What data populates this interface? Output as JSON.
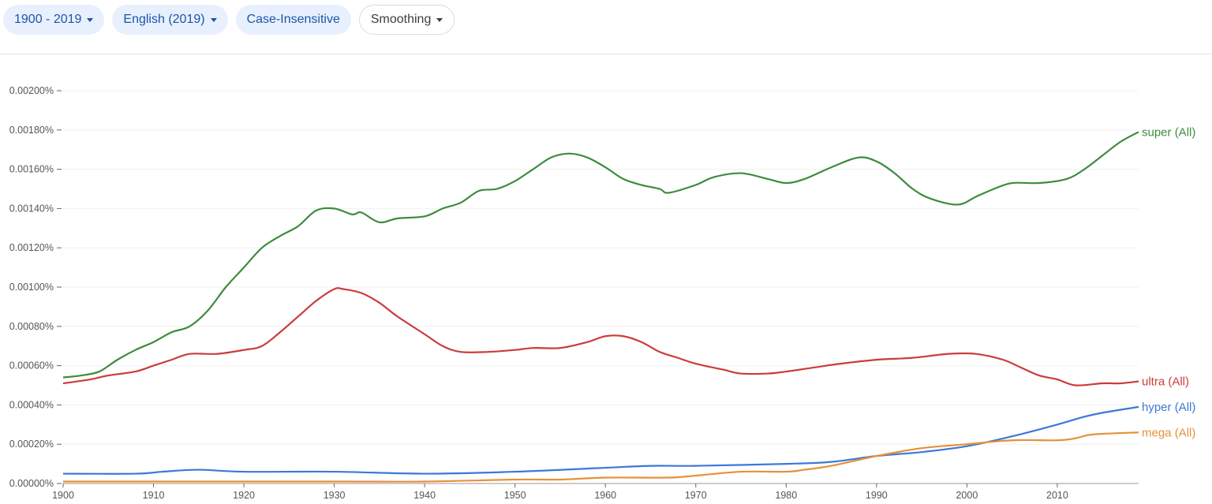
{
  "toolbar": {
    "chips": [
      {
        "label": "1900 - 2019",
        "dropdown": true
      },
      {
        "label": "English (2019)",
        "dropdown": true
      },
      {
        "label": "Case-Insensitive",
        "dropdown": false
      },
      {
        "label": "Smoothing",
        "dropdown": true
      }
    ]
  },
  "chart_data": {
    "type": "line",
    "xlabel": "",
    "ylabel": "",
    "xlim": [
      1900,
      2019
    ],
    "ylim": [
      0,
      0.002
    ],
    "x_ticks": [
      "1900",
      "1910",
      "1920",
      "1930",
      "1940",
      "1950",
      "1960",
      "1970",
      "1980",
      "1990",
      "2000",
      "2010"
    ],
    "y_ticks": [
      "0.00000%",
      "0.00020%",
      "0.00040%",
      "0.00060%",
      "0.00080%",
      "0.00100%",
      "0.00120%",
      "0.00140%",
      "0.00160%",
      "0.00180%",
      "0.00200%"
    ],
    "grid": true,
    "legend": "line-end labels",
    "series": [
      {
        "name": "super (All)",
        "color": "#3d8b3d",
        "x": [
          1900,
          1902,
          1904,
          1906,
          1908,
          1910,
          1912,
          1914,
          1916,
          1918,
          1920,
          1922,
          1924,
          1926,
          1928,
          1930,
          1932,
          1933,
          1935,
          1937,
          1940,
          1942,
          1944,
          1946,
          1948,
          1950,
          1952,
          1954,
          1956,
          1958,
          1960,
          1962,
          1964,
          1966,
          1967,
          1970,
          1972,
          1975,
          1978,
          1980,
          1982,
          1985,
          1988,
          1990,
          1992,
          1994,
          1996,
          1999,
          2001,
          2003,
          2005,
          2008,
          2011,
          2013,
          2015,
          2017,
          2019
        ],
        "values": [
          0.00054,
          0.00055,
          0.00057,
          0.00063,
          0.00068,
          0.00072,
          0.00077,
          0.0008,
          0.00088,
          0.001,
          0.0011,
          0.0012,
          0.00126,
          0.00131,
          0.00139,
          0.0014,
          0.00137,
          0.00138,
          0.00133,
          0.00135,
          0.00136,
          0.0014,
          0.00143,
          0.00149,
          0.0015,
          0.00154,
          0.0016,
          0.00166,
          0.00168,
          0.00166,
          0.00161,
          0.00155,
          0.00152,
          0.0015,
          0.00148,
          0.00152,
          0.00156,
          0.00158,
          0.00155,
          0.00153,
          0.00155,
          0.00161,
          0.00166,
          0.00164,
          0.00158,
          0.0015,
          0.00145,
          0.00142,
          0.00146,
          0.0015,
          0.00153,
          0.00153,
          0.00155,
          0.0016,
          0.00167,
          0.00174,
          0.00179
        ]
      },
      {
        "name": "ultra (All)",
        "color": "#cc3b3b",
        "x": [
          1900,
          1903,
          1905,
          1908,
          1910,
          1912,
          1914,
          1917,
          1920,
          1922,
          1924,
          1926,
          1928,
          1930,
          1931,
          1933,
          1935,
          1937,
          1940,
          1942,
          1944,
          1947,
          1950,
          1952,
          1955,
          1958,
          1960,
          1962,
          1964,
          1966,
          1968,
          1970,
          1973,
          1975,
          1978,
          1980,
          1983,
          1986,
          1990,
          1994,
          1998,
          2001,
          2004,
          2006,
          2008,
          2010,
          2012,
          2015,
          2017,
          2019
        ],
        "values": [
          0.00051,
          0.00053,
          0.00055,
          0.00057,
          0.0006,
          0.00063,
          0.00066,
          0.00066,
          0.00068,
          0.0007,
          0.00077,
          0.00085,
          0.00093,
          0.00099,
          0.00099,
          0.00097,
          0.00092,
          0.00085,
          0.00076,
          0.0007,
          0.00067,
          0.00067,
          0.00068,
          0.00069,
          0.00069,
          0.00072,
          0.00075,
          0.00075,
          0.00072,
          0.00067,
          0.00064,
          0.00061,
          0.00058,
          0.00056,
          0.00056,
          0.00057,
          0.00059,
          0.00061,
          0.00063,
          0.00064,
          0.00066,
          0.00066,
          0.00063,
          0.00059,
          0.00055,
          0.00053,
          0.0005,
          0.00051,
          0.00051,
          0.00052
        ]
      },
      {
        "name": "hyper (All)",
        "color": "#3c78d8",
        "x": [
          1900,
          1908,
          1911,
          1915,
          1920,
          1930,
          1940,
          1950,
          1960,
          1965,
          1970,
          1980,
          1985,
          1990,
          1995,
          2000,
          2005,
          2010,
          2013,
          2015,
          2019
        ],
        "values": [
          5e-05,
          5e-05,
          6e-05,
          7e-05,
          6e-05,
          6e-05,
          5e-05,
          6e-05,
          8e-05,
          9e-05,
          9e-05,
          0.0001,
          0.00011,
          0.00014,
          0.00016,
          0.00019,
          0.00024,
          0.0003,
          0.00034,
          0.00036,
          0.00039
        ]
      },
      {
        "name": "mega (All)",
        "color": "#e69138",
        "x": [
          1900,
          1930,
          1940,
          1950,
          1955,
          1960,
          1967,
          1970,
          1975,
          1980,
          1982,
          1985,
          1990,
          1995,
          2000,
          2005,
          2010,
          2012,
          2014,
          2019
        ],
        "values": [
          1e-05,
          1e-05,
          1e-05,
          2e-05,
          2e-05,
          3e-05,
          3e-05,
          4e-05,
          6e-05,
          6e-05,
          7e-05,
          9e-05,
          0.00014,
          0.00018,
          0.0002,
          0.00022,
          0.00022,
          0.00023,
          0.00025,
          0.00026
        ]
      }
    ]
  }
}
